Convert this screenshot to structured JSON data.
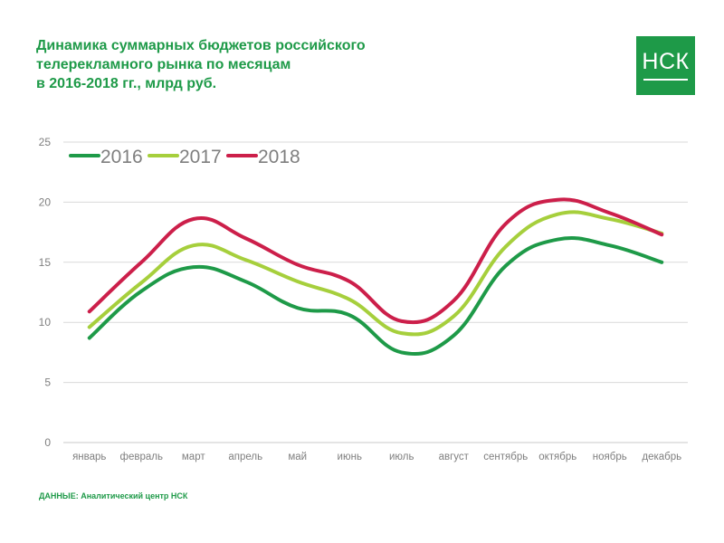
{
  "title_lines": [
    "Динамика суммарных бюджетов российского",
    "телерекламного рынка по месяцам",
    "в 2016-2018 гг., млрд руб."
  ],
  "logo": {
    "text": "НСК",
    "color": "#1e9a48"
  },
  "source": "ДАННЫЕ: Аналитический центр НСК",
  "chart_data": {
    "type": "line",
    "categories": [
      "январь",
      "февраль",
      "март",
      "апрель",
      "май",
      "июнь",
      "июль",
      "август",
      "сентябрь",
      "октябрь",
      "ноябрь",
      "декабрь"
    ],
    "series": [
      {
        "name": "2016",
        "color": "#1e9a48",
        "values": [
          8.7,
          12.6,
          14.6,
          13.4,
          11.2,
          10.6,
          7.5,
          8.9,
          14.7,
          16.9,
          16.4,
          15.0
        ]
      },
      {
        "name": "2017",
        "color": "#a6cf3c",
        "values": [
          9.6,
          13.3,
          16.4,
          15.2,
          13.4,
          11.9,
          9.1,
          10.5,
          16.3,
          19.0,
          18.6,
          17.4
        ]
      },
      {
        "name": "2018",
        "color": "#cc1f4a",
        "values": [
          10.9,
          15.0,
          18.6,
          17.0,
          14.8,
          13.4,
          10.1,
          11.8,
          18.2,
          20.2,
          19.1,
          17.3
        ]
      }
    ],
    "ylim": [
      0,
      25
    ],
    "yticks": [
      0,
      5,
      10,
      15,
      20,
      25
    ],
    "grid": true,
    "legend_position": "top-left",
    "xlabel": "",
    "ylabel": ""
  }
}
